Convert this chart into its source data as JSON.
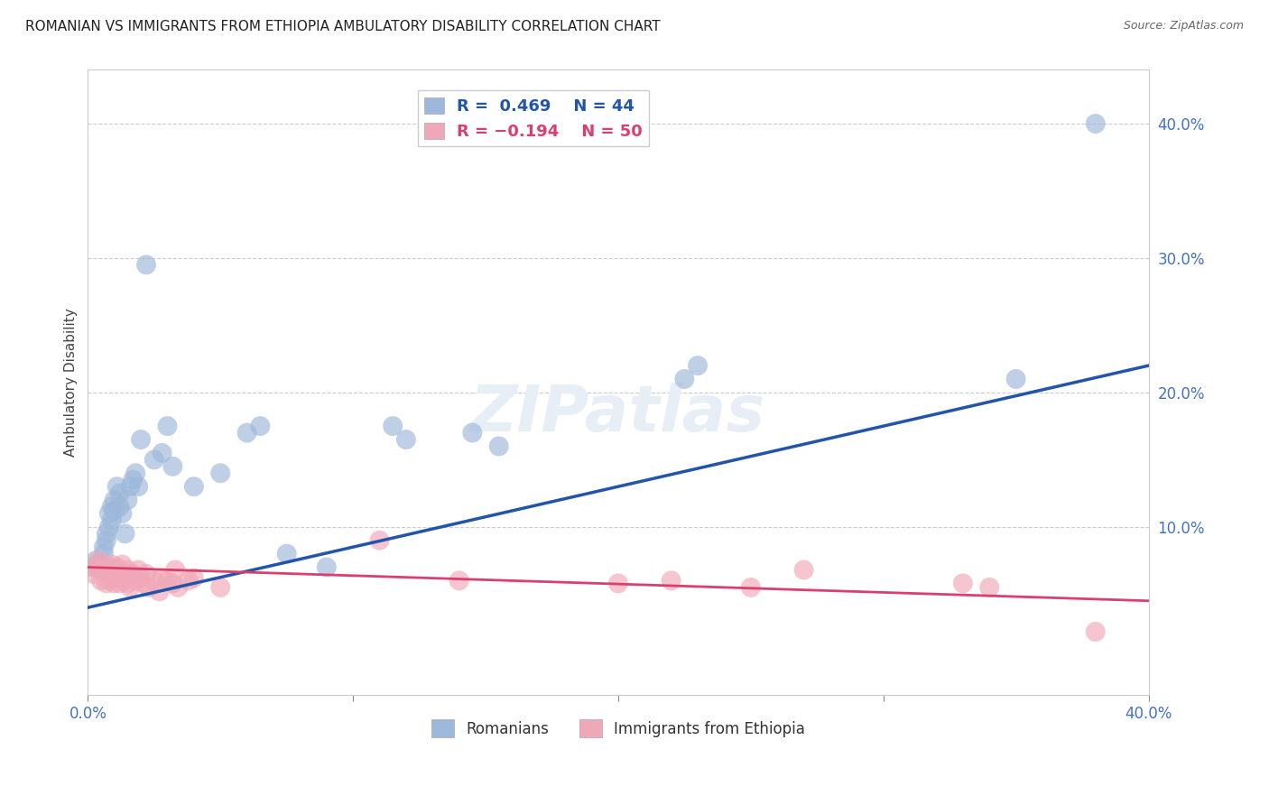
{
  "title": "ROMANIAN VS IMMIGRANTS FROM ETHIOPIA AMBULATORY DISABILITY CORRELATION CHART",
  "source": "Source: ZipAtlas.com",
  "ylabel": "Ambulatory Disability",
  "x_min": 0.0,
  "x_max": 0.4,
  "y_min": -0.025,
  "y_max": 0.44,
  "blue_color": "#9DB8DA",
  "pink_color": "#F0A8B8",
  "blue_line_color": "#2255AA",
  "pink_line_color": "#D94070",
  "axis_label_color": "#4472c4",
  "grid_color": "#cccccc",
  "bg_color": "#ffffff",
  "blue_x": [
    0.002,
    0.003,
    0.004,
    0.005,
    0.006,
    0.006,
    0.007,
    0.007,
    0.008,
    0.008,
    0.009,
    0.009,
    0.01,
    0.01,
    0.011,
    0.012,
    0.012,
    0.013,
    0.014,
    0.015,
    0.016,
    0.017,
    0.018,
    0.019,
    0.02,
    0.022,
    0.025,
    0.028,
    0.03,
    0.032,
    0.04,
    0.05,
    0.06,
    0.065,
    0.075,
    0.09,
    0.115,
    0.12,
    0.145,
    0.155,
    0.225,
    0.23,
    0.35,
    0.38
  ],
  "blue_y": [
    0.07,
    0.075,
    0.072,
    0.068,
    0.08,
    0.085,
    0.09,
    0.095,
    0.1,
    0.11,
    0.115,
    0.105,
    0.12,
    0.112,
    0.13,
    0.115,
    0.125,
    0.11,
    0.095,
    0.12,
    0.13,
    0.135,
    0.14,
    0.13,
    0.165,
    0.295,
    0.15,
    0.155,
    0.175,
    0.145,
    0.13,
    0.14,
    0.17,
    0.175,
    0.08,
    0.07,
    0.175,
    0.165,
    0.17,
    0.16,
    0.21,
    0.22,
    0.21,
    0.4
  ],
  "pink_x": [
    0.002,
    0.003,
    0.004,
    0.005,
    0.005,
    0.006,
    0.007,
    0.007,
    0.008,
    0.008,
    0.009,
    0.009,
    0.01,
    0.01,
    0.011,
    0.011,
    0.012,
    0.012,
    0.013,
    0.013,
    0.014,
    0.015,
    0.015,
    0.016,
    0.017,
    0.018,
    0.019,
    0.02,
    0.021,
    0.022,
    0.023,
    0.025,
    0.027,
    0.028,
    0.03,
    0.032,
    0.033,
    0.034,
    0.038,
    0.04,
    0.05,
    0.11,
    0.14,
    0.2,
    0.22,
    0.25,
    0.27,
    0.33,
    0.34,
    0.38
  ],
  "pink_y": [
    0.065,
    0.07,
    0.075,
    0.06,
    0.068,
    0.072,
    0.058,
    0.065,
    0.07,
    0.06,
    0.072,
    0.065,
    0.058,
    0.068,
    0.062,
    0.07,
    0.065,
    0.058,
    0.072,
    0.06,
    0.065,
    0.058,
    0.068,
    0.055,
    0.065,
    0.06,
    0.068,
    0.062,
    0.058,
    0.065,
    0.055,
    0.06,
    0.052,
    0.062,
    0.06,
    0.058,
    0.068,
    0.055,
    0.06,
    0.062,
    0.055,
    0.09,
    0.06,
    0.058,
    0.06,
    0.055,
    0.068,
    0.058,
    0.055,
    0.022
  ],
  "blue_line_x0": 0.0,
  "blue_line_y0": 0.04,
  "blue_line_x1": 0.4,
  "blue_line_y1": 0.22,
  "pink_line_x0": 0.0,
  "pink_line_y0": 0.07,
  "pink_line_x1": 0.4,
  "pink_line_y1": 0.045,
  "right_yticks": [
    0.0,
    0.1,
    0.2,
    0.3,
    0.4
  ],
  "right_ytick_labels": [
    "",
    "10.0%",
    "20.0%",
    "30.0%",
    "40.0%"
  ]
}
